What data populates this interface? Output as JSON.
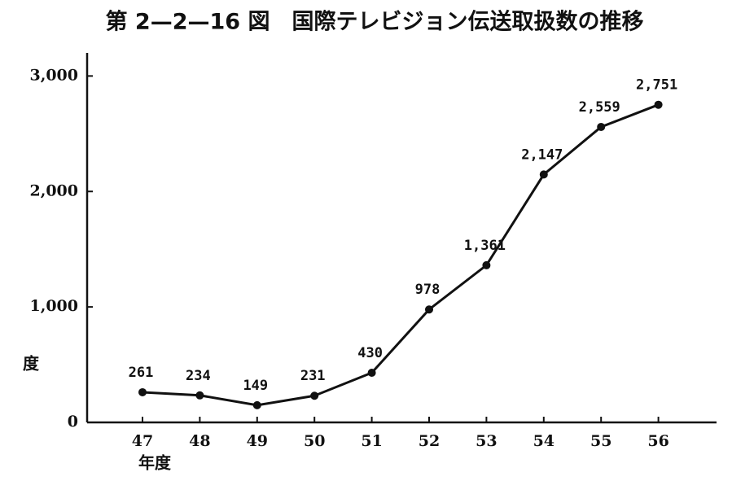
{
  "chart_data": {
    "type": "line",
    "title": "第 2—2—16 図　国際テレビジョン伝送取扱数の推移",
    "y_label": "度",
    "x_label": "年度",
    "categories": [
      "47",
      "48",
      "49",
      "50",
      "51",
      "52",
      "53",
      "54",
      "55",
      "56"
    ],
    "values": [
      261,
      234,
      149,
      231,
      430,
      978,
      1361,
      2147,
      2559,
      2751
    ],
    "value_labels": [
      "261",
      "234",
      "149",
      "231",
      "430",
      "978",
      "1,361",
      "2,147",
      "2,559",
      "2,751"
    ],
    "color": "#111111",
    "ylim": [
      0,
      3200
    ],
    "yticks": [
      0,
      {
        "value": 1000,
        "label": "1,000"
      },
      {
        "value": 2000,
        "label": "2,000"
      },
      {
        "value": 3000,
        "label": "3,000"
      }
    ],
    "grid": false
  }
}
